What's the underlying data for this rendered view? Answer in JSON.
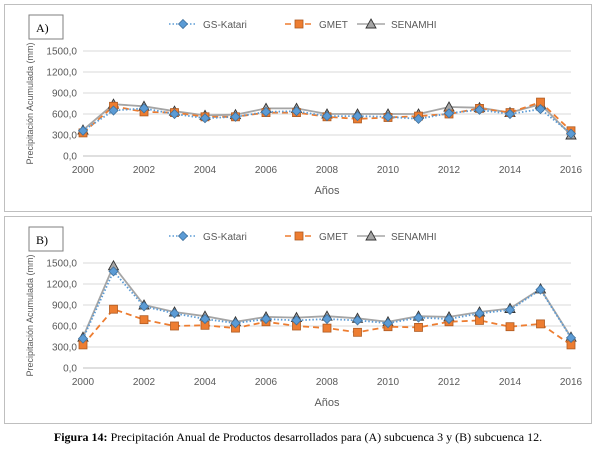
{
  "caption": {
    "label": "Figura 14:",
    "text": "Precipitación Anual de Productos desarrollados para (A) subcuenca 3  y (B) subcuenca 12."
  },
  "chart_data": [
    {
      "type": "line",
      "panel_label": "A)",
      "xlabel": "Años",
      "ylabel": "Precipitación Acumulada (mm)",
      "xlim": [
        2000,
        2016
      ],
      "ylim": [
        0,
        1500
      ],
      "x_ticks": [
        "2000",
        "2002",
        "2004",
        "2006",
        "2008",
        "2010",
        "2012",
        "2014",
        "2016"
      ],
      "y_ticks": [
        "0,0",
        "300,0",
        "600,0",
        "900,0",
        "1200,0",
        "1500,0"
      ],
      "grid": true,
      "legend_position": "top",
      "x": [
        2000,
        2001,
        2002,
        2003,
        2004,
        2005,
        2006,
        2007,
        2008,
        2009,
        2010,
        2011,
        2012,
        2013,
        2014,
        2015,
        2016
      ],
      "series": [
        {
          "name": "GS-Katari",
          "color": "#5b9bd5",
          "marker": "diamond",
          "dash": "dotted",
          "values": [
            360,
            650,
            680,
            600,
            540,
            560,
            630,
            640,
            570,
            570,
            560,
            530,
            610,
            660,
            600,
            670,
            320
          ]
        },
        {
          "name": "GMET",
          "color": "#ed7d31",
          "marker": "square",
          "dash": "dashed",
          "values": [
            330,
            710,
            630,
            620,
            560,
            560,
            620,
            620,
            560,
            530,
            550,
            570,
            600,
            680,
            620,
            770,
            360
          ]
        },
        {
          "name": "SENAMHI",
          "color": "#a5a5a5",
          "marker": "triangle",
          "dash": "solid",
          "values": [
            370,
            740,
            710,
            640,
            580,
            590,
            680,
            680,
            600,
            600,
            600,
            600,
            700,
            690,
            620,
            740,
            300
          ]
        }
      ]
    },
    {
      "type": "line",
      "panel_label": "B)",
      "xlabel": "Años",
      "ylabel": "Precipitación Acumulada (mm)",
      "xlim": [
        2000,
        2016
      ],
      "ylim": [
        0,
        1500
      ],
      "x_ticks": [
        "2000",
        "2002",
        "2004",
        "2006",
        "2008",
        "2010",
        "2012",
        "2014",
        "2016"
      ],
      "y_ticks": [
        "0,0",
        "300,0",
        "600,0",
        "900,0",
        "1200,0",
        "1500,0"
      ],
      "grid": true,
      "legend_position": "top",
      "x": [
        2000,
        2001,
        2002,
        2003,
        2004,
        2005,
        2006,
        2007,
        2008,
        2009,
        2010,
        2011,
        2012,
        2013,
        2014,
        2015,
        2016
      ],
      "series": [
        {
          "name": "GS-Katari",
          "color": "#5b9bd5",
          "marker": "diamond",
          "dash": "dotted",
          "values": [
            420,
            1380,
            880,
            780,
            700,
            640,
            700,
            680,
            700,
            680,
            640,
            720,
            700,
            780,
            830,
            1120,
            430
          ]
        },
        {
          "name": "GMET",
          "color": "#ed7d31",
          "marker": "square",
          "dash": "dashed",
          "values": [
            330,
            840,
            690,
            600,
            610,
            570,
            660,
            600,
            570,
            510,
            590,
            580,
            660,
            680,
            590,
            630,
            330
          ]
        },
        {
          "name": "SENAMHI",
          "color": "#a5a5a5",
          "marker": "triangle",
          "dash": "solid",
          "values": [
            440,
            1460,
            900,
            800,
            740,
            660,
            730,
            720,
            740,
            710,
            660,
            740,
            730,
            800,
            850,
            1130,
            440
          ]
        }
      ]
    }
  ]
}
